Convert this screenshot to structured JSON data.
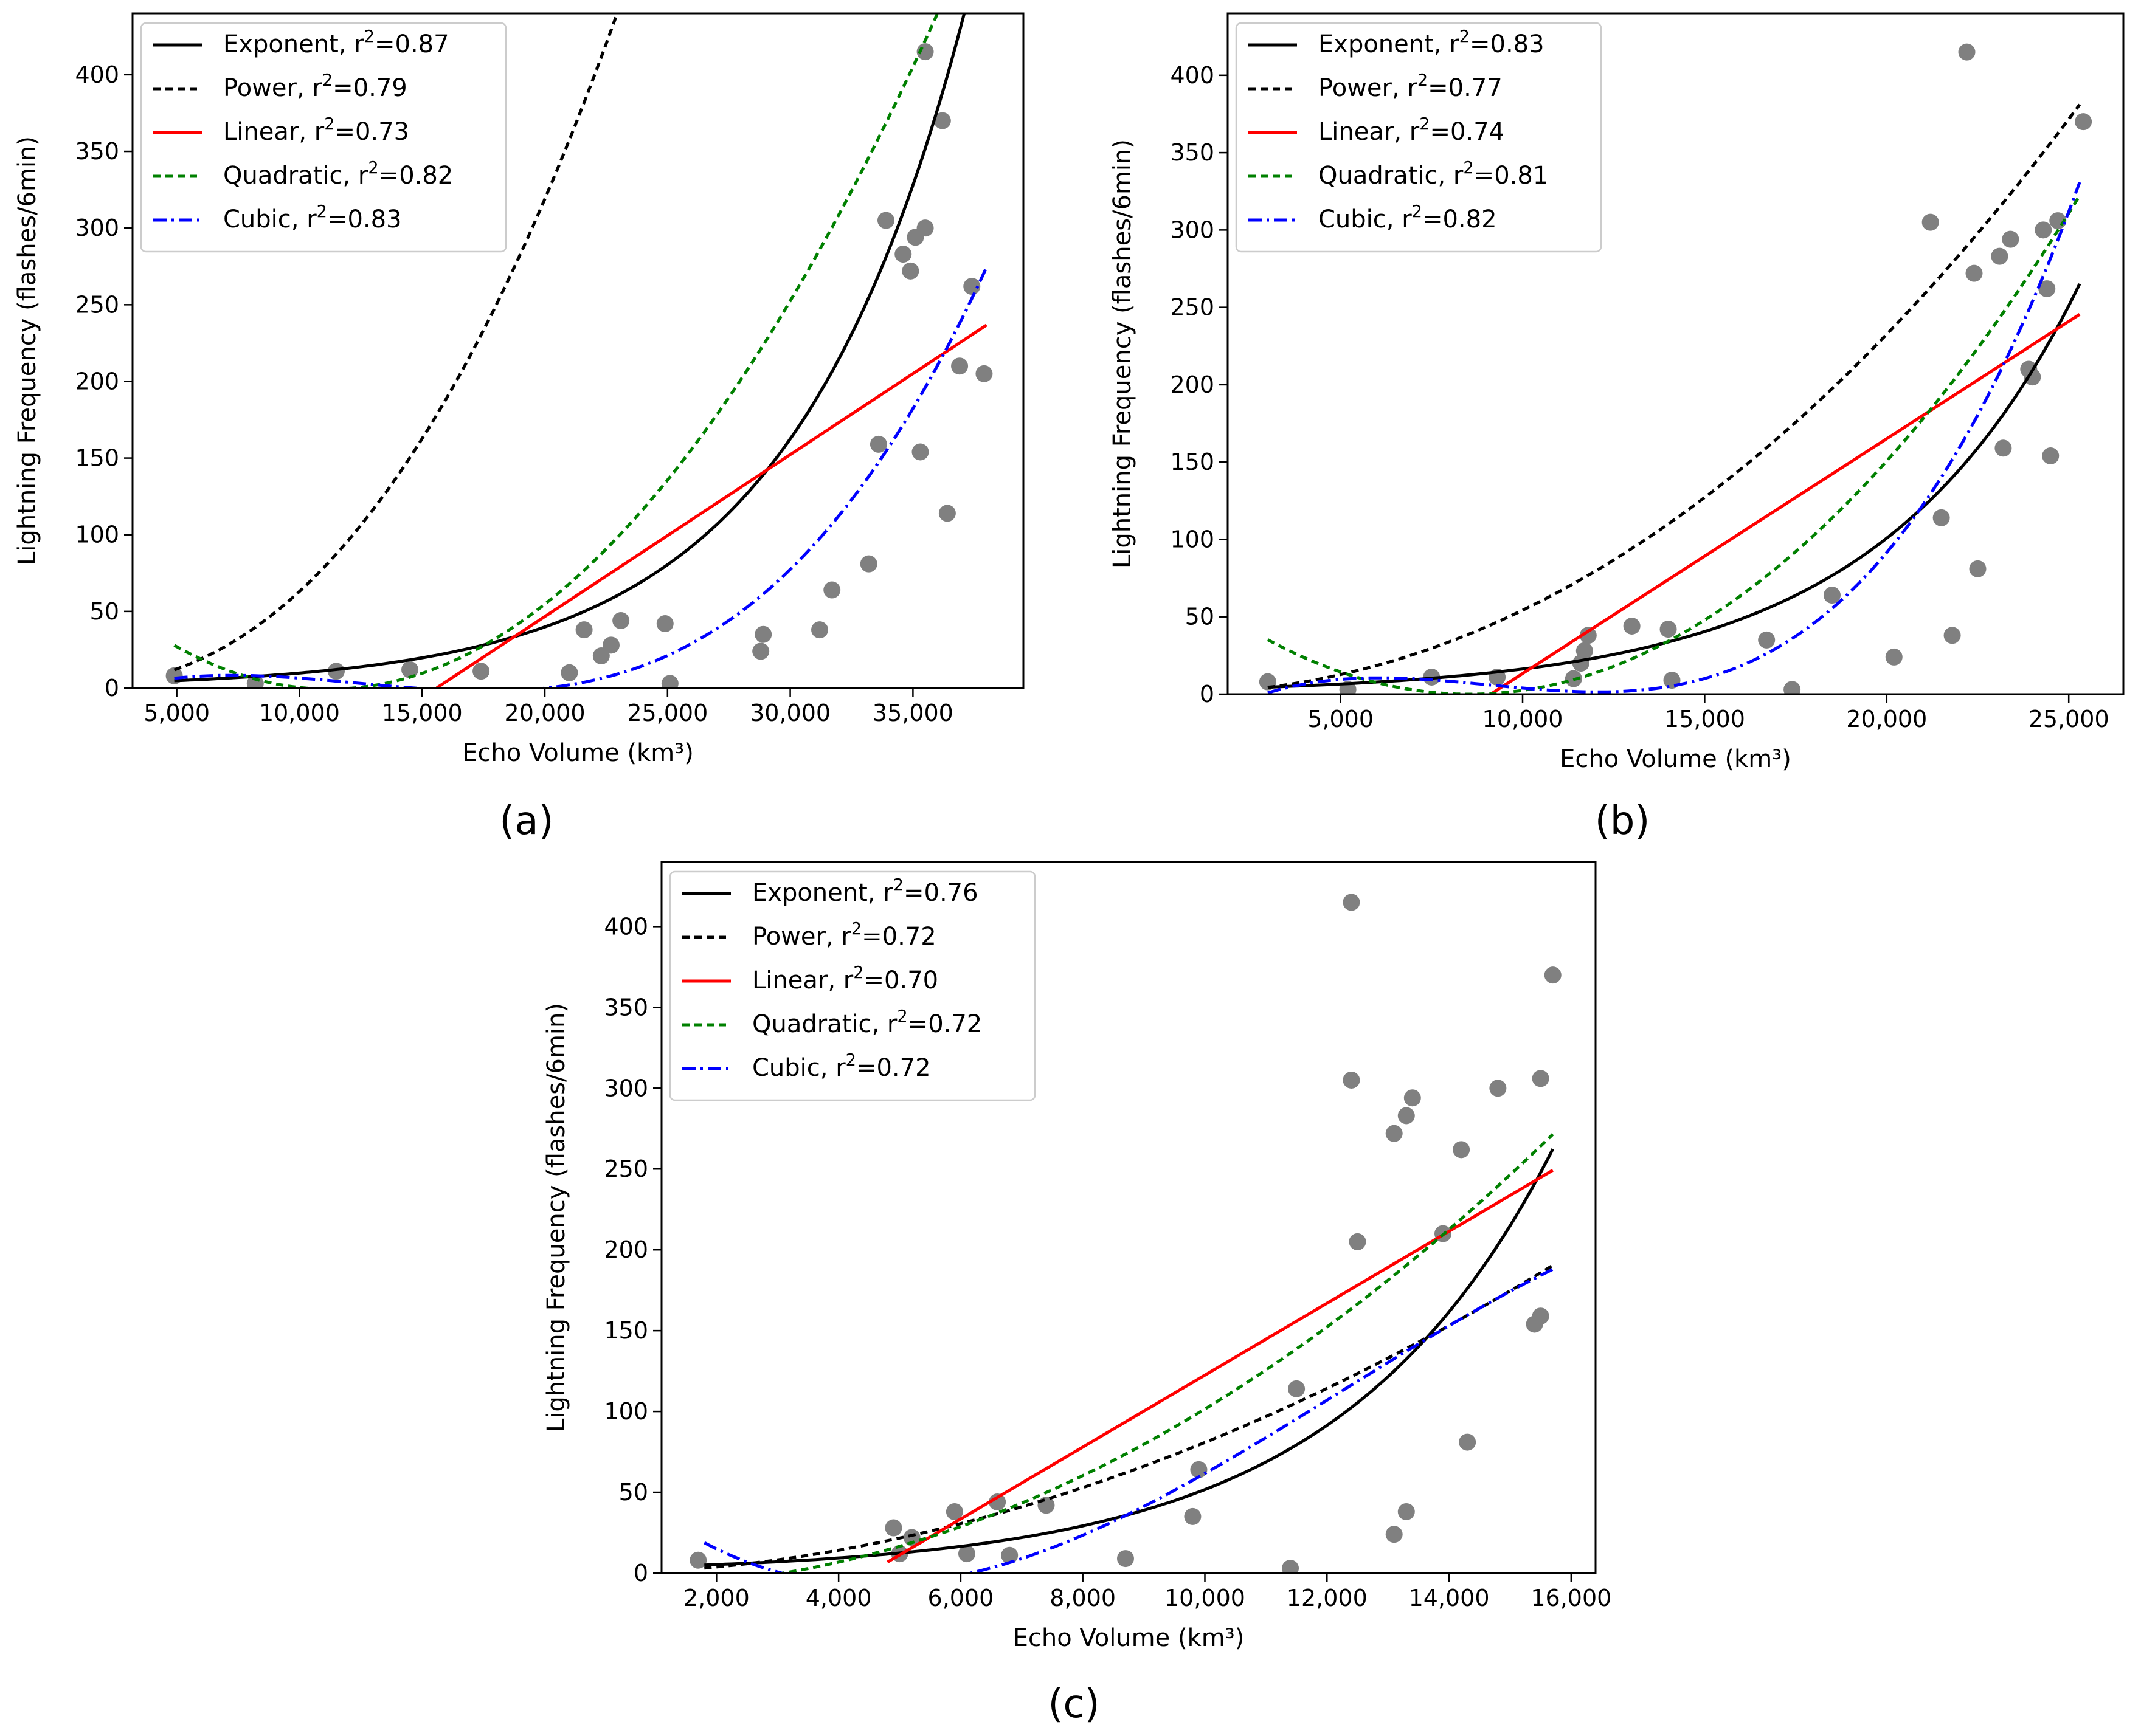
{
  "figure": {
    "panel_labels": [
      "(a)",
      "(b)",
      "(c)"
    ]
  },
  "chart_data": [
    {
      "type": "scatter",
      "panel": "(a)",
      "xlabel": "Echo Volume (km³)",
      "ylabel": "Lightning Frequency (flashes/6min)",
      "xlim": [
        3200,
        39500
      ],
      "ylim": [
        0,
        440
      ],
      "xticks": [
        5000,
        10000,
        15000,
        20000,
        25000,
        30000,
        35000
      ],
      "xtick_labels": [
        "5,000",
        "10,000",
        "15,000",
        "20,000",
        "25,000",
        "30,000",
        "35,000"
      ],
      "yticks": [
        0,
        50,
        100,
        150,
        200,
        250,
        300,
        350,
        400
      ],
      "ytick_labels": [
        "0",
        "50",
        "100",
        "150",
        "200",
        "250",
        "300",
        "350",
        "400"
      ],
      "legend_position": "top-left",
      "points": {
        "color": "#808080",
        "x": [
          4900,
          8200,
          11500,
          14500,
          17400,
          21000,
          21600,
          22300,
          22700,
          23100,
          24900,
          25100,
          28800,
          28900,
          31200,
          31700,
          33200,
          33600,
          33900,
          34600,
          34900,
          35100,
          35300,
          35500,
          35500,
          36200,
          36400,
          36900,
          37400,
          37900
        ],
        "y": [
          8,
          3,
          11,
          12,
          11,
          10,
          38,
          21,
          28,
          44,
          42,
          3,
          24,
          35,
          38,
          64,
          81,
          159,
          305,
          283,
          272,
          294,
          154,
          300,
          415,
          370,
          114,
          210,
          262,
          205
        ]
      },
      "series": [
        {
          "name": "Exponent, r²=0.87",
          "color": "#000000",
          "dash": "",
          "fit": {
            "kind": "exponent",
            "a": 2.4,
            "b": 0.0001405
          },
          "x_range": [
            4900,
            38000
          ]
        },
        {
          "name": "Power, r²=0.79",
          "color": "#000000",
          "dash": "12 8",
          "fit": {
            "kind": "power",
            "a": 2.75e-08,
            "b": 2.34
          },
          "x_range": [
            4900,
            38000
          ]
        },
        {
          "name": "Linear, r²=0.73",
          "color": "#ff0000",
          "dash": "",
          "fit": {
            "kind": "poly",
            "c": [
              -164.55,
              0.01056
            ]
          },
          "x_range": [
            15600,
            38000
          ]
        },
        {
          "name": "Quadratic, r²=0.82",
          "color": "#008000",
          "dash": "12 8",
          "fit": {
            "kind": "poly",
            "c": [
              89.43,
              -0.016075,
              7.17e-07
            ]
          },
          "x_range": [
            4900,
            38000
          ]
        },
        {
          "name": "Cubic, r²=0.83",
          "color": "#0000ff",
          "dash": "22 8 4 8",
          "fit": {
            "kind": "poly",
            "c": [
              -13.96,
              0.007095,
              -6.9e-07,
              1.85e-11
            ]
          },
          "x_range": [
            4900,
            38000
          ]
        }
      ]
    },
    {
      "type": "scatter",
      "panel": "(b)",
      "xlabel": "Echo Volume (km³)",
      "ylabel": "Lightning Frequency (flashes/6min)",
      "xlim": [
        1900,
        26500
      ],
      "ylim": [
        0,
        440
      ],
      "xticks": [
        5000,
        10000,
        15000,
        20000,
        25000
      ],
      "xtick_labels": [
        "5,000",
        "10,000",
        "15,000",
        "20,000",
        "25,000"
      ],
      "yticks": [
        0,
        50,
        100,
        150,
        200,
        250,
        300,
        350,
        400
      ],
      "ytick_labels": [
        "0",
        "50",
        "100",
        "150",
        "200",
        "250",
        "300",
        "350",
        "400"
      ],
      "legend_position": "top-left",
      "points": {
        "color": "#808080",
        "x": [
          3000,
          5200,
          7500,
          9300,
          11400,
          11600,
          11700,
          11800,
          13000,
          14000,
          14100,
          16700,
          17400,
          18500,
          20200,
          21200,
          21500,
          21800,
          22200,
          22400,
          22500,
          23100,
          23200,
          23400,
          23900,
          24000,
          24300,
          24400,
          24500,
          24700,
          25400
        ],
        "y": [
          8,
          3,
          11,
          11,
          10,
          20,
          28,
          38,
          44,
          42,
          9,
          35,
          3,
          64,
          24,
          305,
          114,
          38,
          415,
          272,
          81,
          283,
          159,
          294,
          210,
          205,
          300,
          262,
          154,
          306,
          370
        ]
      },
      "series": [
        {
          "name": "Exponent, r²=0.83",
          "color": "#000000",
          "dash": "",
          "fit": {
            "kind": "exponent",
            "a": 2.62,
            "b": 0.0001825
          },
          "x_range": [
            3000,
            25300
          ]
        },
        {
          "name": "Power, r²=0.77",
          "color": "#000000",
          "dash": "12 8",
          "fit": {
            "kind": "power",
            "a": 2.16e-07,
            "b": 2.1
          },
          "x_range": [
            3000,
            25300
          ]
        },
        {
          "name": "Linear, r²=0.74",
          "color": "#ff0000",
          "dash": "",
          "fit": {
            "kind": "poly",
            "c": [
              -138.44,
              0.015176
            ]
          },
          "x_range": [
            9120,
            25300
          ]
        },
        {
          "name": "Quadratic, r²=0.81",
          "color": "#008000",
          "dash": "12 8",
          "fit": {
            "kind": "poly",
            "c": [
              83.66,
              -0.019595,
              1.1473e-06
            ]
          },
          "x_range": [
            3000,
            25300
          ]
        },
        {
          "name": "Cubic, r²=0.82",
          "color": "#0000ff",
          "dash": "22 8 4 8",
          "fit": {
            "kind": "poly",
            "c": [
              -36.68,
              0.018665,
              -2.3076e-06,
              8.4745e-11
            ]
          },
          "x_range": [
            3000,
            25300
          ]
        }
      ]
    },
    {
      "type": "scatter",
      "panel": "(c)",
      "xlabel": "Echo Volume (km³)",
      "ylabel": "Lightning Frequency (flashes/6min)",
      "xlim": [
        1100,
        16400
      ],
      "ylim": [
        0,
        440
      ],
      "xticks": [
        2000,
        4000,
        6000,
        8000,
        10000,
        12000,
        14000,
        16000
      ],
      "xtick_labels": [
        "2,000",
        "4,000",
        "6,000",
        "8,000",
        "10,000",
        "12,000",
        "14,000",
        "16,000"
      ],
      "yticks": [
        0,
        50,
        100,
        150,
        200,
        250,
        300,
        350,
        400
      ],
      "ytick_labels": [
        "0",
        "50",
        "100",
        "150",
        "200",
        "250",
        "300",
        "350",
        "400"
      ],
      "legend_position": "top-left",
      "points": {
        "color": "#808080",
        "x": [
          1700,
          4900,
          5000,
          5200,
          5900,
          6100,
          6600,
          6800,
          7400,
          8700,
          9800,
          9900,
          11400,
          11500,
          12400,
          12400,
          12500,
          13100,
          13100,
          13300,
          13300,
          13400,
          13900,
          14200,
          14300,
          14800,
          15400,
          15500,
          15500,
          15700
        ],
        "y": [
          8,
          28,
          12,
          22,
          38,
          12,
          44,
          11,
          42,
          9,
          35,
          64,
          3,
          114,
          415,
          305,
          205,
          272,
          24,
          283,
          38,
          294,
          210,
          262,
          81,
          300,
          154,
          159,
          306,
          370
        ]
      },
      "series": [
        {
          "name": "Exponent, r²=0.76",
          "color": "#000000",
          "dash": "",
          "fit": {
            "kind": "exponent",
            "a": 2.99,
            "b": 0.000285
          },
          "x_range": [
            1800,
            15700
          ]
        },
        {
          "name": "Power, r²=0.72",
          "color": "#000000",
          "dash": "12 8",
          "fit": {
            "kind": "power",
            "a": 2.03e-06,
            "b": 1.9
          },
          "x_range": [
            1800,
            15700
          ]
        },
        {
          "name": "Linear, r²=0.70",
          "color": "#ff0000",
          "dash": "",
          "fit": {
            "kind": "poly",
            "c": [
              -99.98,
              0.022244
            ]
          },
          "x_range": [
            4800,
            15700
          ]
        },
        {
          "name": "Quadratic, r²=0.72",
          "color": "#008000",
          "dash": "12 8",
          "fit": {
            "kind": "poly",
            "c": [
              -8.34,
              -0.001017,
              1.2e-06
            ]
          },
          "x_range": [
            2600,
            15700
          ]
        },
        {
          "name": "Cubic, r²=0.72",
          "color": "#0000ff",
          "dash": "22 8 4 8",
          "fit": {
            "kind": "poly",
            "c": [
              68.79,
              -0.036105,
              4.8655e-06,
              -1.3263e-10
            ]
          },
          "x_range": [
            1800,
            15700
          ]
        }
      ]
    }
  ]
}
